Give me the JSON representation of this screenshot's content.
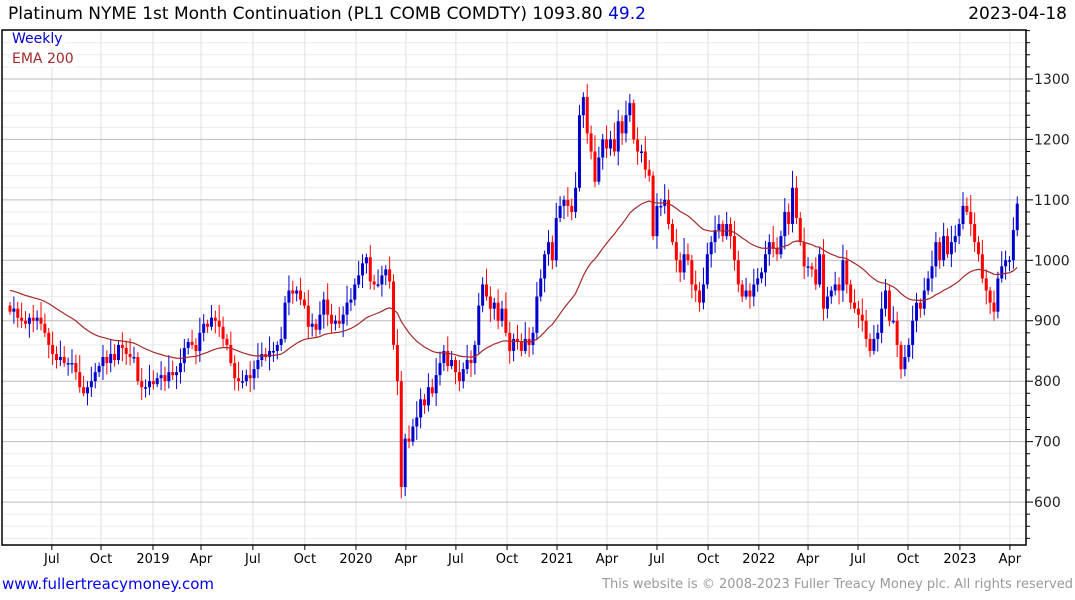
{
  "header": {
    "title": "Platinum NYME 1st Month Continuation (PL1 COMB COMDTY) 1093.80",
    "change": "49.2",
    "date": "2023-04-18"
  },
  "legend": {
    "series": "Weekly",
    "indicator": "EMA 200"
  },
  "footer": {
    "link": "www.fullertreacymoney.com",
    "copyright": "This website is © 2008-2023 Fuller Treacy Money plc. All rights reserved"
  },
  "colors": {
    "up": "#0000cc",
    "down": "#ff0000",
    "ema": "#a52a2a",
    "grid": "#e0e0e0",
    "grid_major": "#bdbdbd"
  },
  "chart_data": {
    "type": "candlestick",
    "title": "Platinum NYME 1st Month Continuation (PL1 COMB COMDTY)",
    "interval": "weekly",
    "ylim": [
      529,
      1381
    ],
    "yticks": [
      600,
      700,
      800,
      900,
      1000,
      1100,
      1200,
      1300
    ],
    "ylabels": [
      "600",
      "700",
      "800",
      "900",
      "1000",
      "1100",
      "1200",
      "1300"
    ],
    "ema_period_weeks": 40,
    "ema_seed": 952,
    "first_open": 925,
    "xticks": [
      {
        "label": "Jul",
        "week": 10.8
      },
      {
        "label": "Oct",
        "week": 23.5
      },
      {
        "label": "2019",
        "week": 36.9
      },
      {
        "label": "Apr",
        "week": 49.3
      },
      {
        "label": "Jul",
        "week": 62.7
      },
      {
        "label": "Oct",
        "week": 76.1
      },
      {
        "label": "2020",
        "week": 89.3
      },
      {
        "label": "Apr",
        "week": 102.2
      },
      {
        "label": "Jul",
        "week": 115.1
      },
      {
        "label": "Oct",
        "week": 128.3
      },
      {
        "label": "2021",
        "week": 141.2
      },
      {
        "label": "Apr",
        "week": 154.1
      },
      {
        "label": "Jul",
        "week": 167.0
      },
      {
        "label": "Oct",
        "week": 180.2
      },
      {
        "label": "2022",
        "week": 193.3
      },
      {
        "label": "Apr",
        "week": 206.0
      },
      {
        "label": "Jul",
        "week": 218.9
      },
      {
        "label": "Oct",
        "week": 231.8
      },
      {
        "label": "2023",
        "week": 245.2
      },
      {
        "label": "Apr",
        "week": 258.1
      }
    ],
    "closes": [
      915,
      920,
      905,
      900,
      895,
      905,
      900,
      905,
      895,
      880,
      860,
      845,
      835,
      840,
      830,
      830,
      830,
      815,
      790,
      780,
      790,
      800,
      815,
      825,
      840,
      830,
      845,
      835,
      860,
      855,
      845,
      840,
      840,
      800,
      790,
      790,
      800,
      795,
      805,
      810,
      800,
      815,
      810,
      815,
      830,
      855,
      865,
      860,
      850,
      880,
      895,
      890,
      905,
      900,
      890,
      870,
      860,
      830,
      805,
      800,
      800,
      810,
      805,
      820,
      835,
      845,
      840,
      850,
      850,
      860,
      870,
      930,
      950,
      945,
      950,
      935,
      925,
      890,
      895,
      885,
      910,
      935,
      910,
      895,
      900,
      895,
      910,
      930,
      935,
      960,
      975,
      995,
      1005,
      965,
      960,
      960,
      975,
      985,
      965,
      860,
      800,
      625,
      705,
      700,
      725,
      740,
      770,
      760,
      790,
      780,
      810,
      830,
      850,
      825,
      835,
      815,
      800,
      820,
      835,
      830,
      860,
      925,
      960,
      940,
      920,
      930,
      900,
      920,
      880,
      850,
      870,
      865,
      850,
      870,
      860,
      880,
      940,
      970,
      1010,
      1030,
      1000,
      1070,
      1090,
      1100,
      1090,
      1080,
      1120,
      1240,
      1270,
      1210,
      1180,
      1130,
      1170,
      1200,
      1185,
      1200,
      1180,
      1230,
      1210,
      1240,
      1260,
      1200,
      1180,
      1180,
      1150,
      1140,
      1040,
      1090,
      1090,
      1100,
      1060,
      1030,
      1000,
      980,
      1010,
      1000,
      960,
      950,
      930,
      960,
      1010,
      1030,
      1050,
      1060,
      1040,
      1060,
      1040,
      1000,
      960,
      940,
      950,
      940,
      960,
      970,
      980,
      1010,
      1030,
      1020,
      1010,
      1040,
      1080,
      1060,
      1120,
      1070,
      1030,
      990,
      990,
      985,
      960,
      1010,
      920,
      940,
      950,
      960,
      950,
      1000,
      960,
      930,
      920,
      910,
      900,
      870,
      850,
      870,
      880,
      920,
      950,
      900,
      900,
      860,
      820,
      840,
      860,
      900,
      930,
      920,
      950,
      970,
      990,
      1030,
      1000,
      1040,
      1010,
      1030,
      1040,
      1060,
      1090,
      1080,
      1060,
      1030,
      1010,
      970,
      950,
      930,
      915,
      970,
      990,
      1000,
      1000,
      1050,
      1093.8
    ]
  }
}
